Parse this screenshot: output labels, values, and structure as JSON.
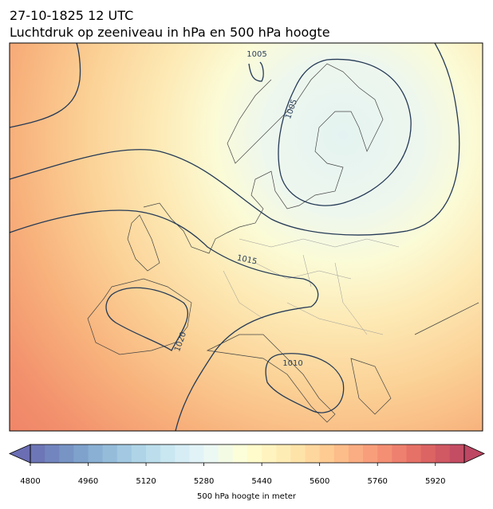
{
  "header": {
    "title": "27-10-1825 12 UTC",
    "subtitle": "Luchtdruk op zeeniveau in hPa en 500 hPa hoogte"
  },
  "map": {
    "contour_labels": [
      "1005",
      "1005",
      "1015",
      "1020",
      "1010"
    ]
  },
  "colorbar": {
    "range": [
      4800,
      6000
    ],
    "step": 40,
    "ticks": [
      4800,
      4960,
      5120,
      5280,
      5440,
      5600,
      5760,
      5920
    ],
    "label": "500 hPa hoogte in meter"
  }
}
